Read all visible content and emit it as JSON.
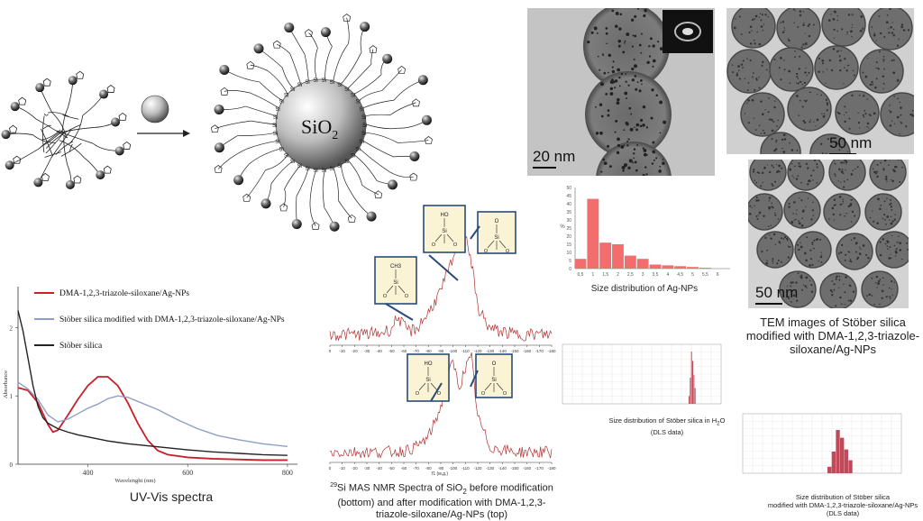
{
  "scheme": {
    "core_label": "SiO",
    "core_subscript": "2",
    "si_label": "Si"
  },
  "tem": {
    "panel1_scale": "20 nm",
    "panel2_scale": "50 nm",
    "panel3_scale": "50 nm",
    "caption": "TEM images of Stöber silica modified with DMA-1,2,3-triazole-siloxane/Ag-NPs"
  },
  "ag_hist": {
    "caption": "Size distribution of Ag-NPs",
    "y_ticks": [
      "0",
      "5",
      "10",
      "15",
      "20",
      "25",
      "30",
      "35",
      "40",
      "45",
      "50"
    ],
    "x_ticks": [
      "0,5",
      "1",
      "1,5",
      "2",
      "2,5",
      "3",
      "3,5",
      "4",
      "4,5",
      "5",
      "5,5",
      "6"
    ],
    "ylabel": "%",
    "color": "#f26d6d"
  },
  "chart_data": [
    {
      "type": "line",
      "title": "UV-Vis spectra",
      "xlabel": "Wavelenght (nm)",
      "ylabel": "Absorbance",
      "xlim": [
        260,
        820
      ],
      "ylim": [
        0,
        2.6
      ],
      "x_ticks": [
        "400",
        "600",
        "800"
      ],
      "y_ticks": [
        "0",
        "1",
        "2"
      ],
      "legend_position": "top-right",
      "series": [
        {
          "name": "DMA-1,2,3-triazole-siloxane/Ag-NPs",
          "color": "#c8202a",
          "x": [
            260,
            280,
            300,
            320,
            330,
            340,
            360,
            380,
            400,
            420,
            440,
            460,
            480,
            500,
            520,
            540,
            560,
            600,
            650,
            700,
            750,
            800
          ],
          "y": [
            1.12,
            1.08,
            0.9,
            0.58,
            0.47,
            0.5,
            0.72,
            0.95,
            1.15,
            1.28,
            1.28,
            1.15,
            0.9,
            0.6,
            0.35,
            0.2,
            0.14,
            0.1,
            0.08,
            0.07,
            0.06,
            0.06
          ]
        },
        {
          "name": "Stöber silica modified with DMA-1,2,3-triazole-siloxane/Ag-NPs",
          "color": "#8d9fc6",
          "x": [
            260,
            280,
            300,
            320,
            340,
            360,
            380,
            400,
            420,
            440,
            460,
            480,
            500,
            540,
            580,
            620,
            660,
            700,
            750,
            800
          ],
          "y": [
            1.2,
            1.1,
            0.95,
            0.72,
            0.62,
            0.66,
            0.74,
            0.82,
            0.88,
            0.96,
            1.0,
            0.98,
            0.92,
            0.8,
            0.65,
            0.52,
            0.42,
            0.36,
            0.3,
            0.26
          ]
        },
        {
          "name": "Stöber silica",
          "color": "#222222",
          "x": [
            260,
            270,
            280,
            290,
            300,
            310,
            320,
            340,
            360,
            380,
            400,
            440,
            480,
            520,
            560,
            600,
            650,
            700,
            750,
            800
          ],
          "y": [
            2.25,
            1.95,
            1.55,
            1.15,
            0.85,
            0.68,
            0.6,
            0.52,
            0.47,
            0.43,
            0.4,
            0.34,
            0.3,
            0.27,
            0.24,
            0.21,
            0.18,
            0.16,
            0.14,
            0.13
          ]
        }
      ]
    },
    {
      "type": "bar",
      "title": "Size distribution of Ag-NPs",
      "categories": [
        "0,5",
        "1",
        "1,5",
        "2",
        "2,5",
        "3",
        "3,5",
        "4",
        "4,5",
        "5",
        "5,5"
      ],
      "values": [
        6,
        43,
        16,
        15,
        8,
        6,
        2.5,
        2,
        1.5,
        1,
        0.5
      ],
      "ylim": [
        0,
        50
      ]
    },
    {
      "type": "line",
      "title": "29Si MAS NMR Spectra of SiO2 before modification (bottom) and after modification with DMA-1,2,3-triazole-siloxane/Ag-NPs (top)",
      "xlabel": "f1 (м.д.)",
      "x_ticks": [
        "0",
        "-10",
        "-20",
        "-30",
        "-40",
        "-50",
        "-60",
        "-70",
        "-80",
        "-90",
        "-100",
        "-110",
        "-120",
        "-130",
        "-140",
        "-150",
        "-160",
        "-170",
        "-180"
      ],
      "xlim": [
        0,
        -180
      ],
      "series": [
        {
          "name": "top",
          "color": "#b03030",
          "x": [
            0,
            -20,
            -40,
            -50,
            -55,
            -60,
            -65,
            -70,
            -80,
            -90,
            -95,
            -100,
            -105,
            -110,
            -115,
            -120,
            -130,
            -150,
            -180
          ],
          "y": [
            0.05,
            0.05,
            0.06,
            0.1,
            0.22,
            0.12,
            0.08,
            0.1,
            0.25,
            0.45,
            0.6,
            0.75,
            0.9,
            1.0,
            0.7,
            0.3,
            0.1,
            0.05,
            0.05
          ]
        },
        {
          "name": "bottom",
          "color": "#b03030",
          "x": [
            0,
            -20,
            -40,
            -60,
            -70,
            -80,
            -90,
            -95,
            -100,
            -105,
            -110,
            -115,
            -120,
            -130,
            -150,
            -180
          ],
          "y": [
            0.05,
            0.05,
            0.05,
            0.06,
            0.1,
            0.2,
            0.5,
            0.8,
            0.95,
            0.7,
            0.9,
            1.0,
            0.4,
            0.1,
            0.05,
            0.05
          ]
        }
      ]
    }
  ],
  "nmr": {
    "top_axis_label": "f1 (м.д.)",
    "bottom_axis_label": "f1 (м.д.)",
    "caption_sup": "29",
    "caption_a": "Si MAS NMR Spectra of  SiO",
    "caption_sub": "2",
    "caption_b": " before modification (bottom) and after modification with DMA-1,2,3-triazole-siloxane/Ag-NPs (top)",
    "box_ho": "HO",
    "box_si": "Si",
    "box_o": "O",
    "box_ch3": "CH3"
  },
  "dls1": {
    "caption_a": "Size distribution of ",
    "caption_b": "Stöber silica in H",
    "caption_sub": "2",
    "caption_c": "O",
    "caption_line2": "(DLS data)",
    "color": "#c04a5a"
  },
  "dls2": {
    "caption_line1": "Size distribution of Stöber silica",
    "caption_line2": "modified with DMA-1,2,3-triazole-siloxane/Ag-NPs",
    "caption_line3": "(DLS data)",
    "color": "#c04a5a"
  }
}
